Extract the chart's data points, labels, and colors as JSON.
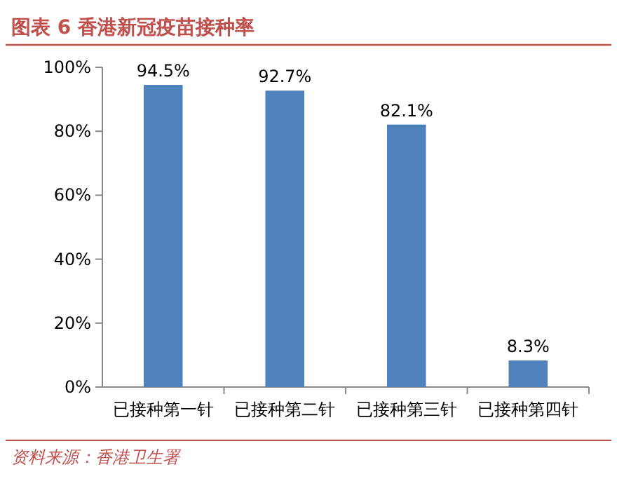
{
  "chart_data": {
    "type": "bar",
    "title": "图表 6  香港新冠疫苗接种率",
    "categories": [
      "已接种第一针",
      "已接种第二针",
      "已接种第三针",
      "已接种第四针"
    ],
    "values": [
      94.5,
      92.7,
      82.1,
      8.3
    ],
    "value_labels": [
      "94.5%",
      "92.7%",
      "82.1%",
      "8.3%"
    ],
    "color": "#4f81bd",
    "ylim": [
      0,
      100
    ],
    "yticks": [
      {
        "value": 0,
        "label": "0%"
      },
      {
        "value": 20,
        "label": "20%"
      },
      {
        "value": 40,
        "label": "40%"
      },
      {
        "value": 60,
        "label": "60%"
      },
      {
        "value": 80,
        "label": "80%"
      },
      {
        "value": 100,
        "label": "100%"
      }
    ],
    "annotations": [
      "资料来源：香港卫生署"
    ]
  }
}
